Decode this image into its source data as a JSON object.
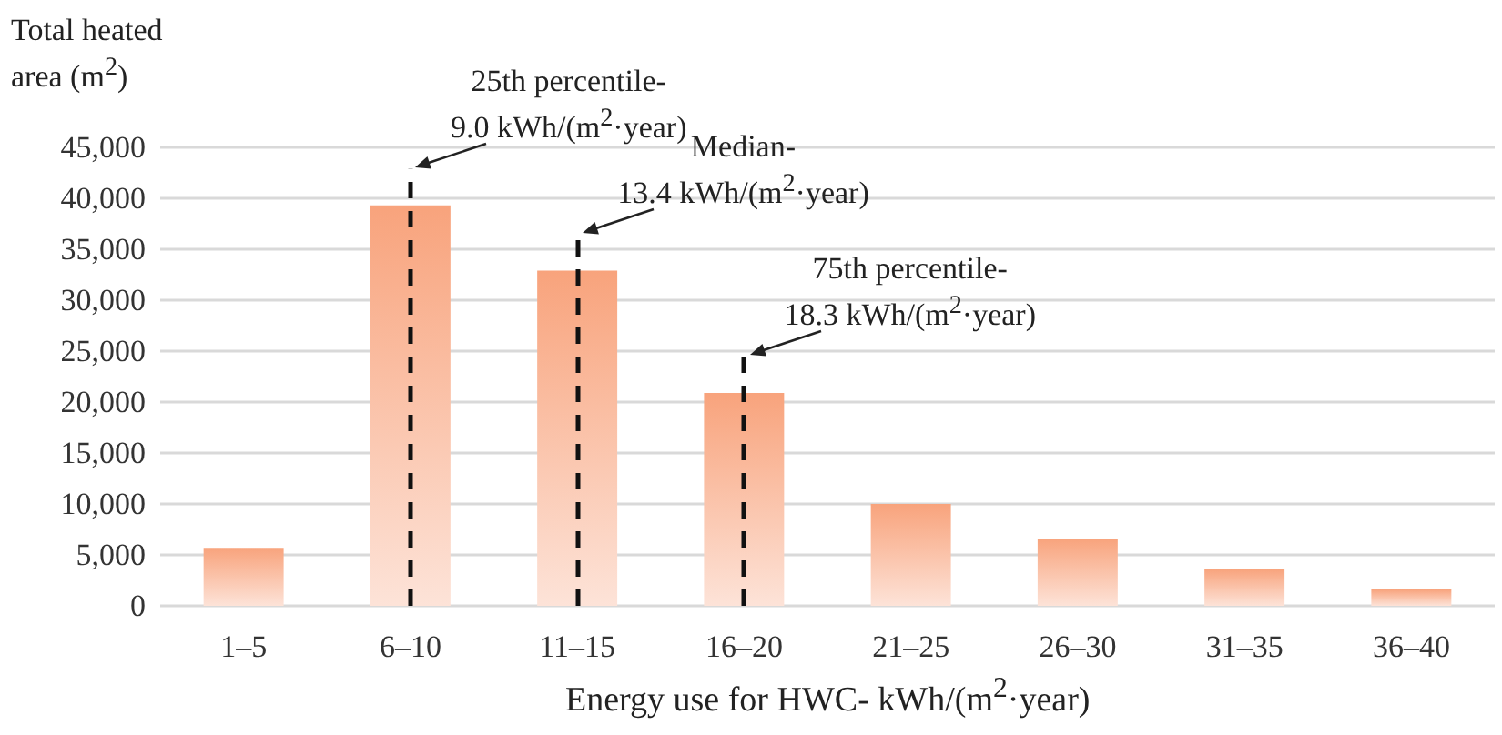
{
  "chart_data": {
    "type": "bar",
    "ylabel": "Total heated area (m$^{2}$)",
    "xlabel": "Energy use for HWC- kWh/(m$^{2}$·year)",
    "categories": [
      "1–5",
      "6–10",
      "11–15",
      "16–20",
      "21–25",
      "26–30",
      "31–35",
      "36–40"
    ],
    "values": [
      5700,
      39300,
      32900,
      20900,
      10000,
      6600,
      3600,
      1600
    ],
    "color": "#f8a37c",
    "ylim": [
      0,
      45000
    ],
    "yticks": [
      0,
      {
        "value": 5000,
        "label": "5,000"
      },
      {
        "value": 10000,
        "label": "10,000"
      },
      {
        "value": 15000,
        "label": "15,000"
      },
      {
        "value": 20000,
        "label": "20,000"
      },
      {
        "value": 25000,
        "label": "25,000"
      },
      {
        "value": 30000,
        "label": "30,000"
      },
      {
        "value": 35000,
        "label": "35,000"
      },
      {
        "value": 40000,
        "label": "40,000"
      },
      {
        "value": 45000,
        "label": "45,000"
      }
    ],
    "grid": "y",
    "ref_lines": [
      {
        "axis": "x",
        "value": "6–10",
        "label": "25th percentile-\n9.0 kWh/(m$^{2}$·year)",
        "color": "#111111",
        "line_style": "dashed"
      },
      {
        "axis": "x",
        "value": "11–15",
        "label": "Median-\n13.4 kWh/(m$^{2}$·year)",
        "color": "#111111",
        "line_style": "dashed"
      },
      {
        "axis": "x",
        "value": "16–20",
        "label": "75th percentile-\n18.3 kWh/(m$^{2}$·year)",
        "color": "#111111",
        "line_style": "dashed"
      }
    ]
  }
}
